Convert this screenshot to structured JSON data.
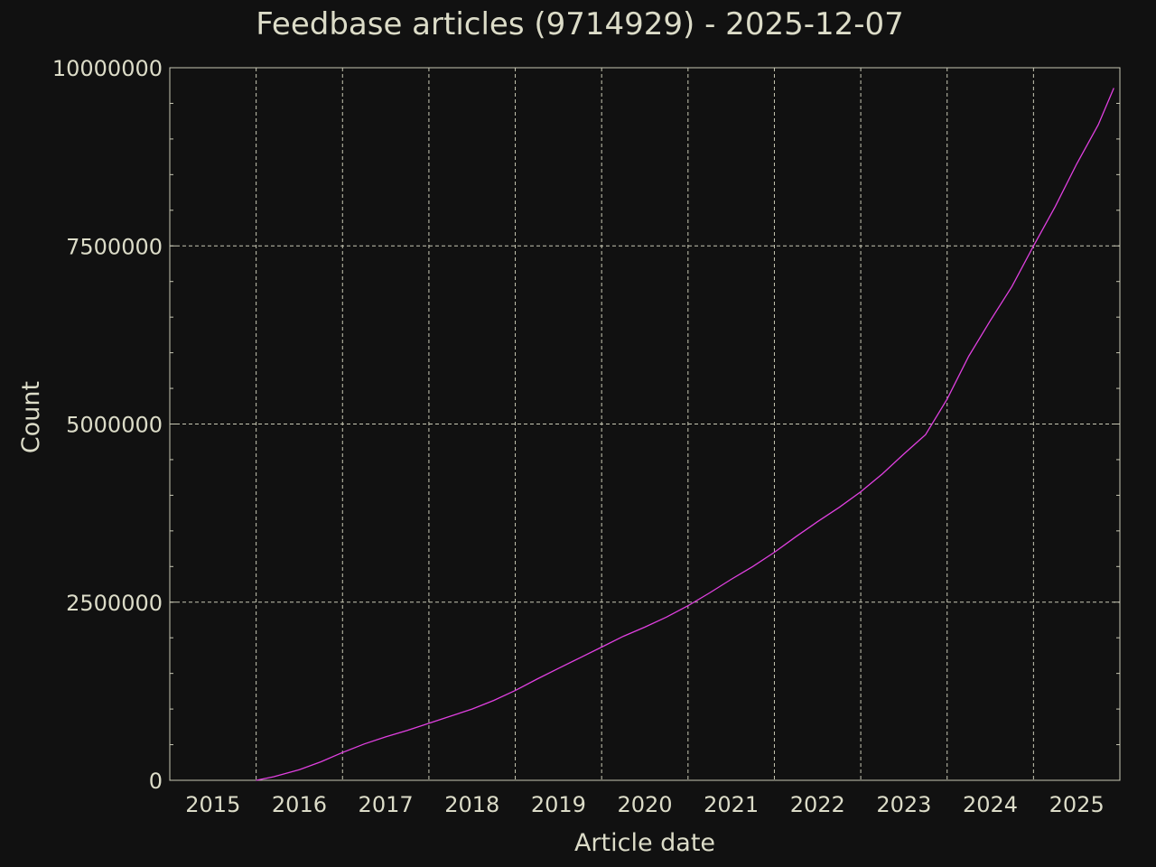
{
  "chart_data": {
    "type": "line",
    "title": "Feedbase articles (9714929) - 2025-12-07",
    "xlabel": "Article date",
    "ylabel": "Count",
    "xlim": [
      2015.0,
      2026.0
    ],
    "ylim": [
      0,
      10000000
    ],
    "xticks": [
      2015,
      2016,
      2017,
      2018,
      2019,
      2020,
      2021,
      2022,
      2023,
      2024,
      2025
    ],
    "xtick_labels": [
      "2015",
      "2016",
      "2017",
      "2018",
      "2019",
      "2020",
      "2021",
      "2022",
      "2023",
      "2024",
      "2025"
    ],
    "yticks": [
      0,
      2500000,
      5000000,
      7500000,
      10000000
    ],
    "ytick_labels": [
      "0",
      "2500000",
      "5000000",
      "7500000",
      "10000000"
    ],
    "grid": true,
    "series_color": "#e040e0",
    "series": [
      {
        "x": [
          2016.0,
          2016.2,
          2016.5,
          2016.75,
          2017.0,
          2017.25,
          2017.5,
          2017.75,
          2018.0,
          2018.25,
          2018.5,
          2018.75,
          2019.0,
          2019.25,
          2019.5,
          2019.75,
          2020.0,
          2020.25,
          2020.5,
          2020.75,
          2021.0,
          2021.25,
          2021.5,
          2021.75,
          2022.0,
          2022.25,
          2022.5,
          2022.75,
          2023.0,
          2023.25,
          2023.5,
          2023.75,
          2024.0,
          2024.25,
          2024.5,
          2024.75,
          2025.0,
          2025.25,
          2025.5,
          2025.75,
          2025.93
        ],
        "values": [
          0,
          50000,
          150000,
          260000,
          390000,
          510000,
          610000,
          700000,
          800000,
          900000,
          1000000,
          1120000,
          1260000,
          1420000,
          1570000,
          1720000,
          1870000,
          2020000,
          2150000,
          2290000,
          2450000,
          2630000,
          2820000,
          3000000,
          3200000,
          3420000,
          3630000,
          3830000,
          4050000,
          4300000,
          4580000,
          4850000,
          5350000,
          5950000,
          6450000,
          6930000,
          7500000,
          8050000,
          8650000,
          9200000,
          9714929
        ]
      }
    ]
  }
}
